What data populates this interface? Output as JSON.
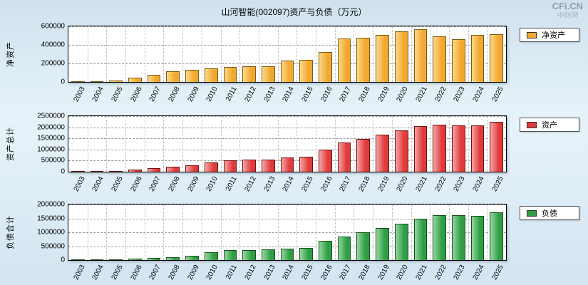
{
  "page": {
    "title": "山河智能(002097)资产与负债（万元）",
    "watermark": {
      "line1": "CFi.CN",
      "line2": "中财网"
    }
  },
  "chart_data": [
    {
      "type": "bar",
      "title": "净资产",
      "ylabel": "净资产",
      "legend": "净资产",
      "color": "#F2A72E",
      "color_light": "#FBD98A",
      "border": "#7a5c12",
      "ylim": [
        0,
        600000
      ],
      "yticks": [
        0,
        200000,
        400000,
        600000
      ],
      "grid": true,
      "legend_position": "right",
      "categories": [
        "2003",
        "2004",
        "2005",
        "2006",
        "2007",
        "2008",
        "2009",
        "2010",
        "2011",
        "2012",
        "2013",
        "2014",
        "2015",
        "2016",
        "2017",
        "2018",
        "2019",
        "2020",
        "2021",
        "2022",
        "2023",
        "2024",
        "2025"
      ],
      "values": [
        5000,
        9000,
        13000,
        45000,
        78000,
        115000,
        130000,
        150000,
        162000,
        167000,
        172000,
        230000,
        237000,
        320000,
        470000,
        480000,
        505000,
        545000,
        572000,
        490000,
        465000,
        505000,
        515000
      ]
    },
    {
      "type": "bar",
      "title": "资产总计",
      "ylabel": "资产总计",
      "legend": "资产",
      "color": "#E03A3A",
      "color_light": "#F5A6A6",
      "border": "#6e1414",
      "ylim": [
        0,
        2500000
      ],
      "yticks": [
        0,
        500000,
        1000000,
        1500000,
        2000000,
        2500000
      ],
      "grid": true,
      "legend_position": "right",
      "categories": [
        "2003",
        "2004",
        "2005",
        "2006",
        "2007",
        "2008",
        "2009",
        "2010",
        "2011",
        "2012",
        "2013",
        "2014",
        "2015",
        "2016",
        "2017",
        "2018",
        "2019",
        "2020",
        "2021",
        "2022",
        "2023",
        "2024",
        "2025"
      ],
      "values": [
        25000,
        35000,
        45000,
        95000,
        150000,
        210000,
        290000,
        430000,
        520000,
        530000,
        555000,
        645000,
        665000,
        1000000,
        1310000,
        1480000,
        1655000,
        1855000,
        2060000,
        2100000,
        2085000,
        2095000,
        2230000
      ]
    },
    {
      "type": "bar",
      "title": "负债合计",
      "ylabel": "负债合计",
      "legend": "负债",
      "color": "#2E9E44",
      "color_light": "#97D6A0",
      "border": "#14501e",
      "ylim": [
        0,
        2000000
      ],
      "yticks": [
        0,
        500000,
        1000000,
        1500000,
        2000000
      ],
      "grid": true,
      "legend_position": "right",
      "categories": [
        "2003",
        "2004",
        "2005",
        "2006",
        "2007",
        "2008",
        "2009",
        "2010",
        "2011",
        "2012",
        "2013",
        "2014",
        "2015",
        "2016",
        "2017",
        "2018",
        "2019",
        "2020",
        "2021",
        "2022",
        "2023",
        "2024",
        "2025"
      ],
      "values": [
        18000,
        25000,
        32000,
        50000,
        72000,
        95000,
        160000,
        280000,
        358000,
        363000,
        383000,
        415000,
        428000,
        680000,
        840000,
        1000000,
        1150000,
        1310000,
        1488000,
        1610000,
        1620000,
        1590000,
        1715000
      ]
    }
  ]
}
